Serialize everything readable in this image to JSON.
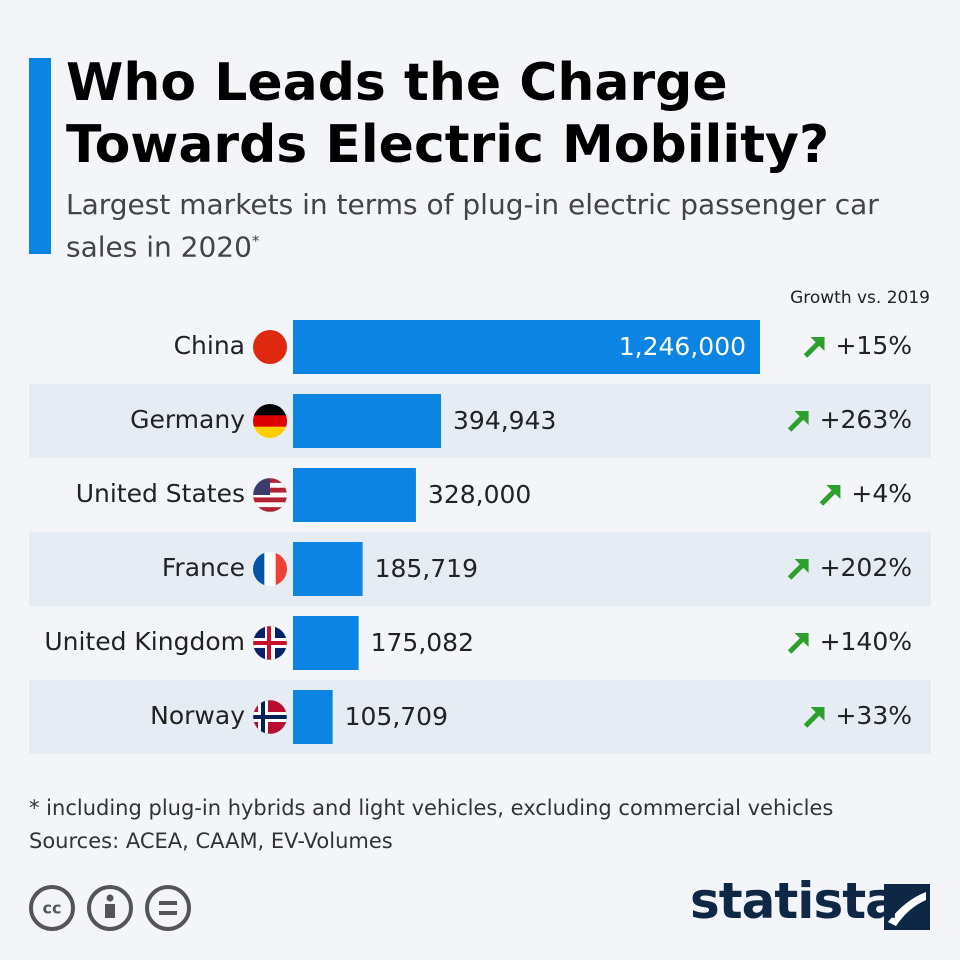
{
  "chart_data": {
    "type": "bar",
    "orientation": "horizontal",
    "title": "Who Leads the Charge Towards Electric Mobility?",
    "subtitle": "Largest markets in terms of plug-in electric passenger car sales in 2020",
    "subtitle_marker": "*",
    "categories": [
      "China",
      "Germany",
      "United States",
      "France",
      "United Kingdom",
      "Norway"
    ],
    "values": [
      1246000,
      394943,
      328000,
      185719,
      175082,
      105709
    ],
    "value_labels": [
      "1,246,000",
      "394,943",
      "328,000",
      "185,719",
      "175,082",
      "105,709"
    ],
    "color": "#0c84e4",
    "growth_header": "Growth vs. 2019",
    "growth_labels": [
      "+15%",
      "+263%",
      "+4%",
      "+202%",
      "+140%",
      "+33%"
    ],
    "note": "* including plug-in hybrids and light vehicles, excluding commercial vehicles",
    "source": "Sources: ACEA, CAAM, EV-Volumes",
    "brand": "statista"
  }
}
